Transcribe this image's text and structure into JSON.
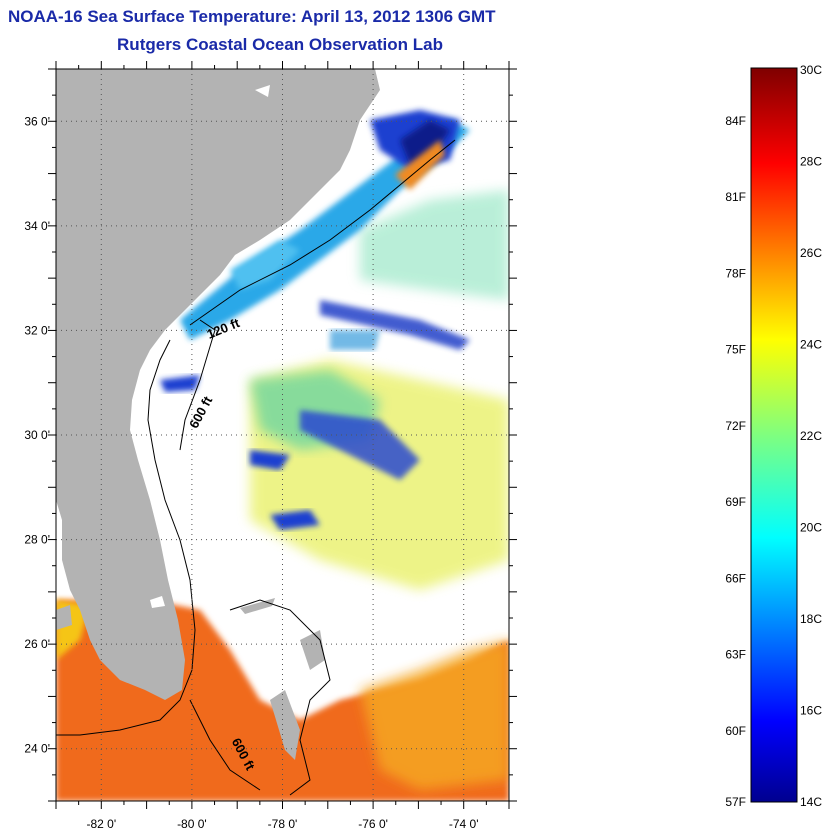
{
  "header": {
    "title": "NOAA-16 Sea Surface Temperature:  April 13, 2012 1306 GMT",
    "subtitle": "Rutgers Coastal Ocean Observation Lab"
  },
  "map": {
    "lon_range": [
      -83,
      -73
    ],
    "lat_range": [
      23,
      37
    ],
    "lon_ticks": [
      "-82 0'",
      "-80 0'",
      "-78 0'",
      "-76 0'",
      "-74 0'"
    ],
    "lat_ticks": [
      "36 0'",
      "34 0'",
      "32 0'",
      "30 0'",
      "28 0'",
      "26 0'",
      "24 0'"
    ],
    "contours": [
      {
        "label": "120 ft"
      },
      {
        "label": "600 ft"
      },
      {
        "label": "600 ft"
      }
    ],
    "colors": {
      "land": "#b3b3b3",
      "cloud": "#ffffff",
      "cold": "#1f3fd0",
      "cool": "#2aa8e8",
      "mild": "#6ee0b0",
      "warm": "#f06a1a"
    }
  },
  "colorbar": {
    "celsius_labels": [
      "30C",
      "28C",
      "26C",
      "24C",
      "22C",
      "20C",
      "18C",
      "16C",
      "14C"
    ],
    "fahrenheit_labels": [
      "84F",
      "81F",
      "78F",
      "75F",
      "72F",
      "69F",
      "66F",
      "63F",
      "60F",
      "57F"
    ],
    "range_c": [
      14,
      30
    ]
  }
}
